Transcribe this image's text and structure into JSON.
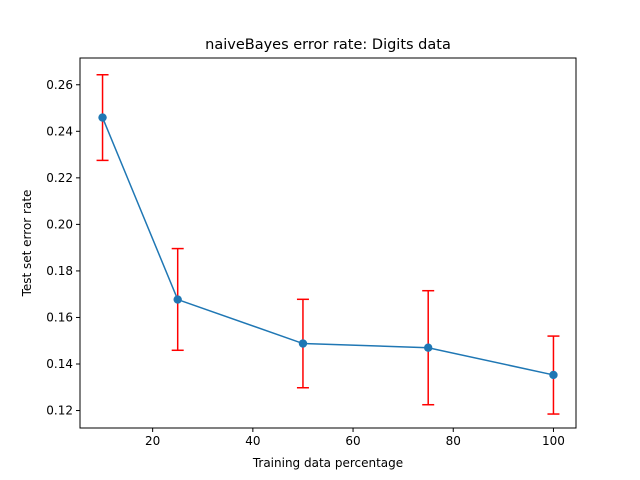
{
  "chart_data": {
    "type": "line",
    "title": "naiveBayes error rate: Digits data",
    "xlabel": "Training data percentage",
    "ylabel": "Test set error rate",
    "xlim": [
      5.5,
      104.5
    ],
    "ylim": [
      0.1125,
      0.2715
    ],
    "xticks": [
      20,
      40,
      60,
      80,
      100
    ],
    "yticks": [
      0.12,
      0.14,
      0.16,
      0.18,
      0.2,
      0.22,
      0.24,
      0.26
    ],
    "ytick_labels": [
      "0.12",
      "0.14",
      "0.16",
      "0.18",
      "0.20",
      "0.22",
      "0.24",
      "0.26"
    ],
    "grid": false,
    "series": [
      {
        "x": [
          10,
          25,
          50,
          75,
          100
        ],
        "y": [
          0.2459,
          0.1677,
          0.1488,
          0.147,
          0.1353
        ],
        "err_low": [
          0.2275,
          0.1459,
          0.1298,
          0.1225,
          0.1185
        ],
        "err_high": [
          0.2643,
          0.1896,
          0.1678,
          0.1715,
          0.152
        ],
        "line_color": "#1f77b4",
        "marker_color": "#1f77b4",
        "error_color": "#ff0000"
      }
    ]
  }
}
